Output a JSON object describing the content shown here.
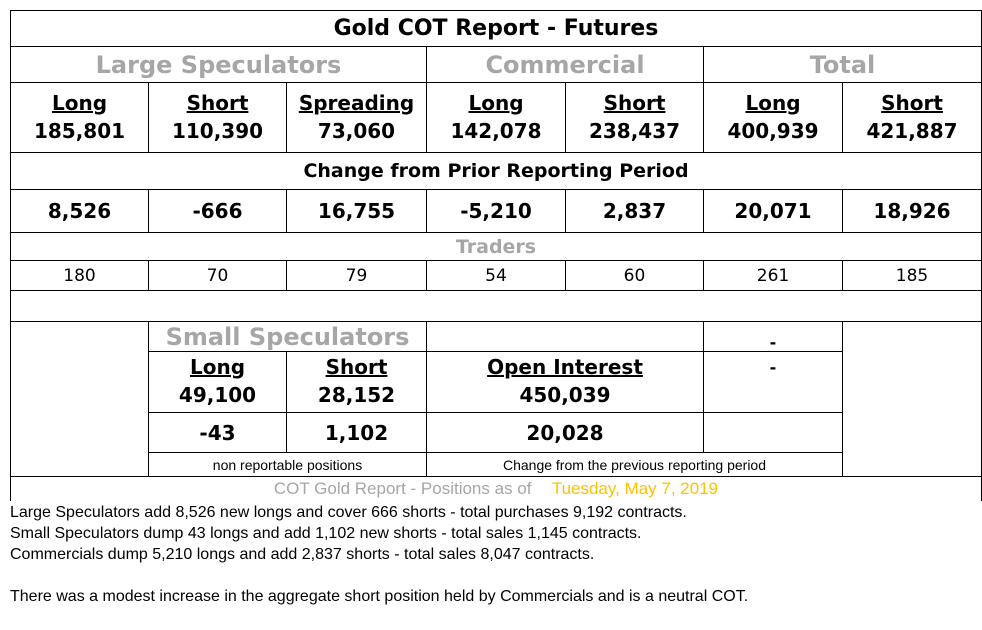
{
  "title": "Gold COT Report - Futures",
  "groups": {
    "large": "Large Speculators",
    "commercial": "Commercial",
    "total": "Total"
  },
  "positions": [
    {
      "label": "Long",
      "value": "185,801"
    },
    {
      "label": "Short",
      "value": "110,390"
    },
    {
      "label": "Spreading",
      "value": "73,060"
    },
    {
      "label": "Long",
      "value": "142,078"
    },
    {
      "label": "Short",
      "value": "238,437"
    },
    {
      "label": "Long",
      "value": "400,939"
    },
    {
      "label": "Short",
      "value": "421,887"
    }
  ],
  "change_title": "Change from Prior Reporting Period",
  "changes": [
    "8,526",
    "-666",
    "16,755",
    "-5,210",
    "2,837",
    "20,071",
    "18,926"
  ],
  "traders_title": "Traders",
  "traders": [
    "180",
    "70",
    "79",
    "54",
    "60",
    "261",
    "185"
  ],
  "small": {
    "title": "Small Speculators",
    "long_label": "Long",
    "long": "49,100",
    "short_label": "Short",
    "short": "28,152",
    "long_change": "-43",
    "short_change": "1,102",
    "note": "non reportable positions"
  },
  "open_interest": {
    "label": "Open Interest",
    "value": "450,039",
    "change": "20,028",
    "note": "Change from the previous reporting period"
  },
  "dash": "-",
  "footer": {
    "prefix": "COT Gold Report - Positions as of",
    "date": "Tuesday, May 7, 2019",
    "date_color": "#ffc000"
  },
  "commentary": [
    "Large Speculators add 8,526 new longs and cover 666 shorts - total purchases 9,192 contracts.",
    "Small Speculators dump 43 longs and add 1,102 new shorts - total sales 1,145 contracts.",
    "Commercials dump 5,210 longs and add 2,837 shorts - total sales 8,047 contracts.",
    "There was a modest increase in the aggregate short position held by Commercials and is a neutral COT."
  ]
}
